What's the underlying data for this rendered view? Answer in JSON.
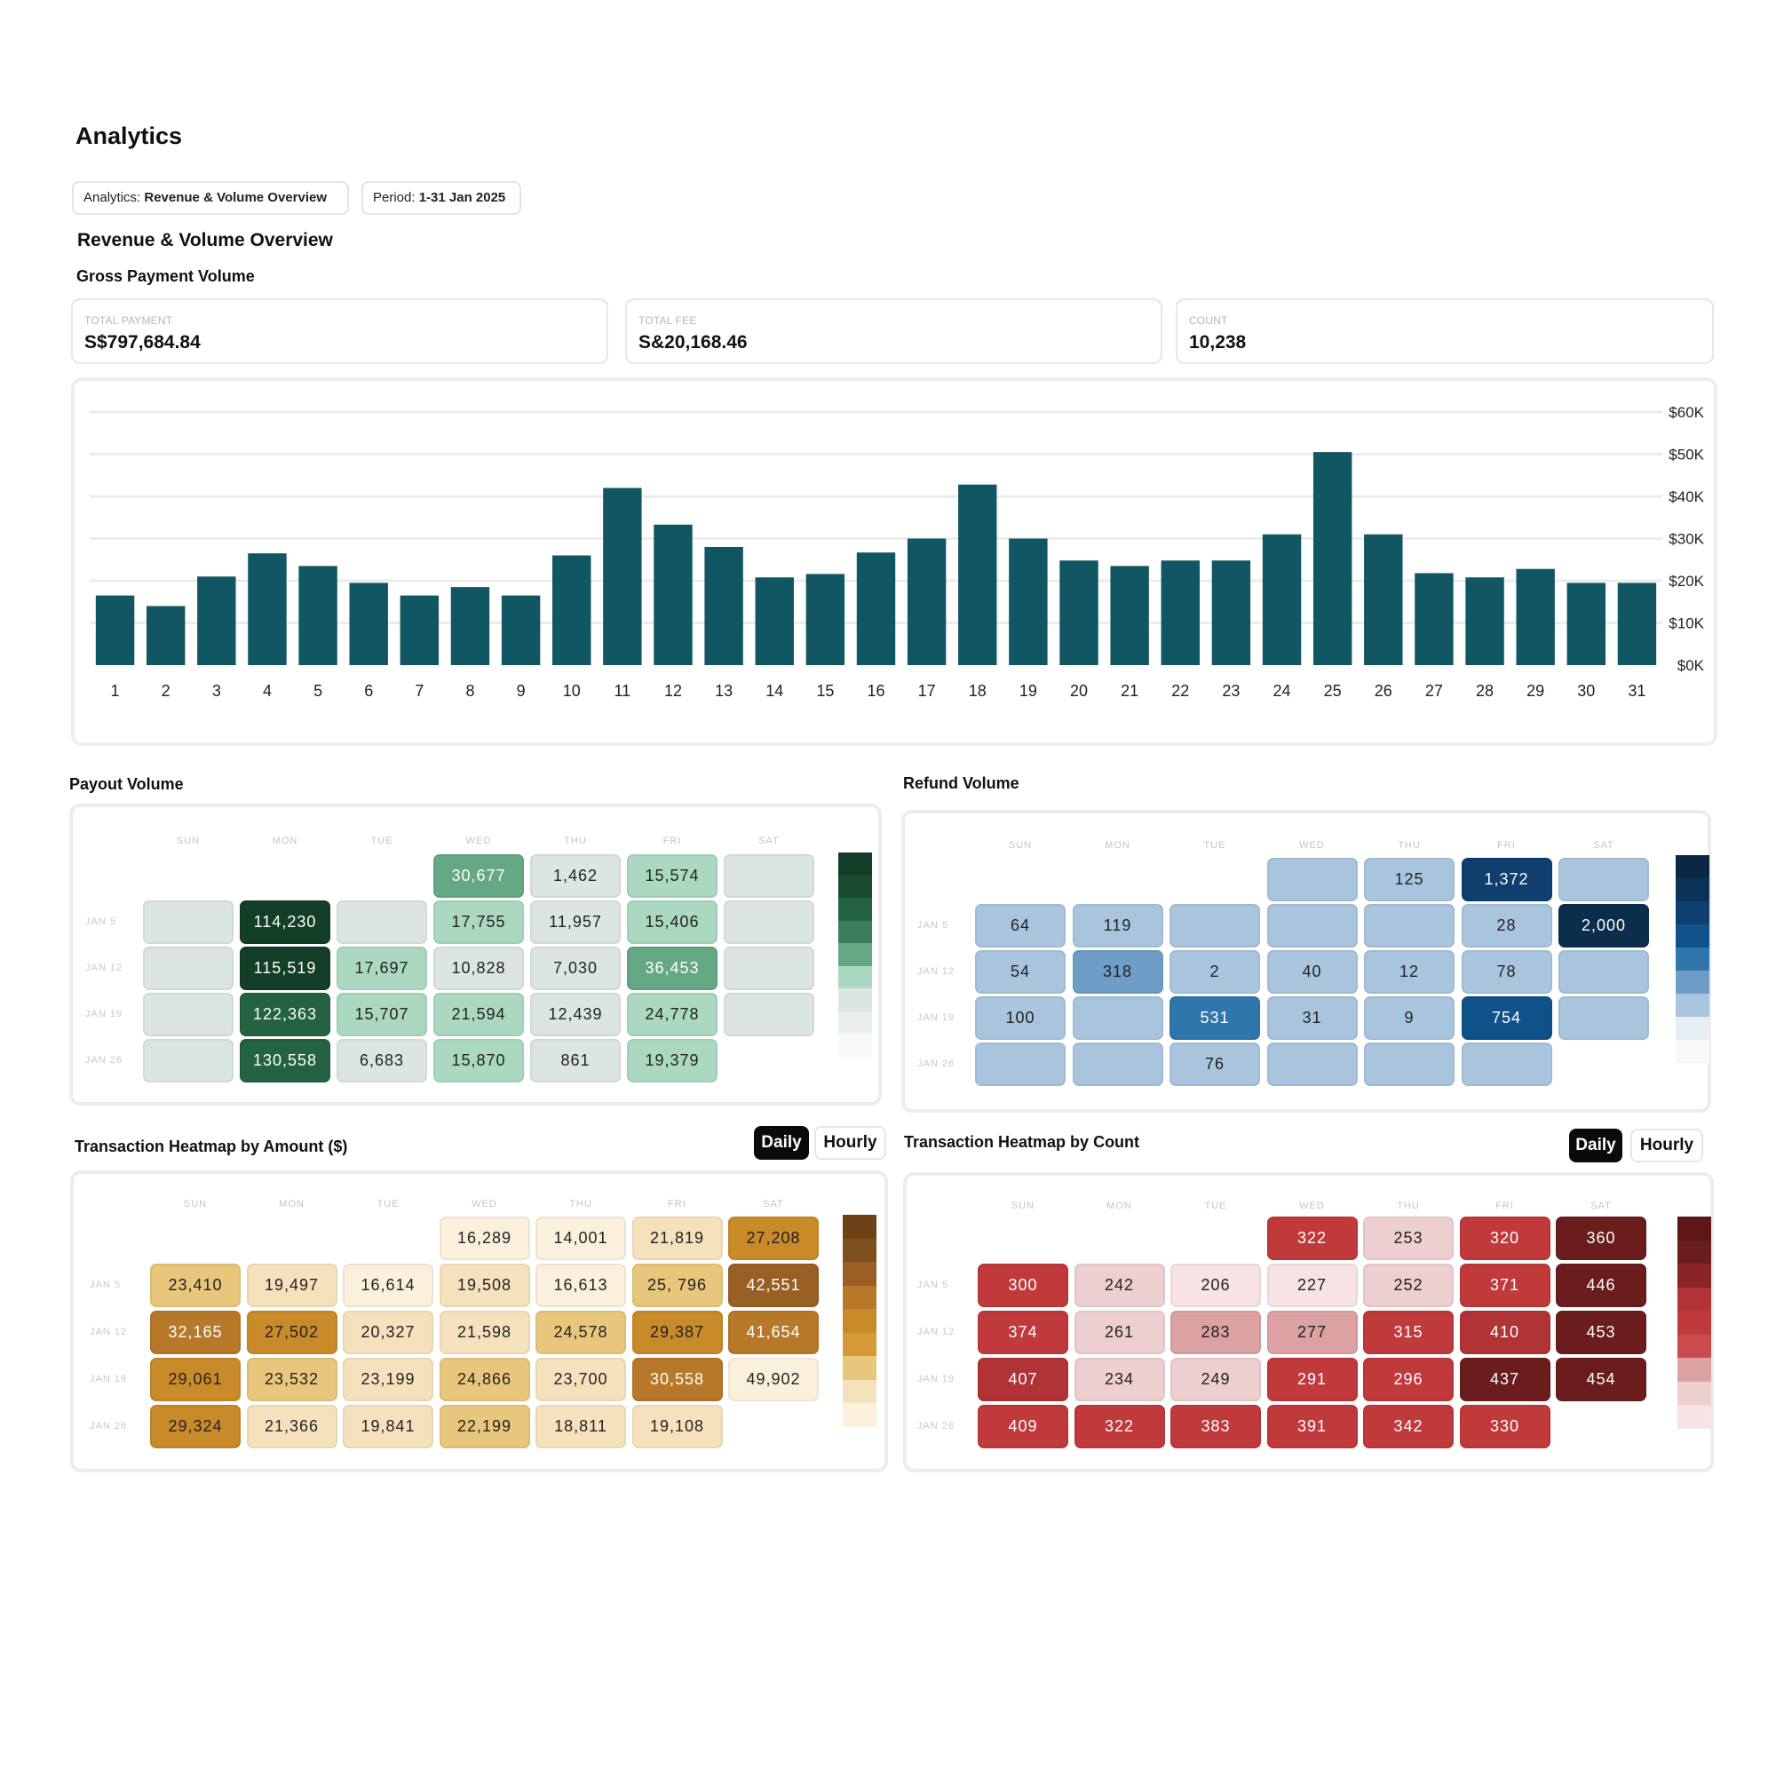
{
  "header": {
    "title": "Analytics",
    "analytics_chip": {
      "label": "Analytics:",
      "value": "Revenue & Volume Overview"
    },
    "period_chip": {
      "label": "Period:",
      "value": "1-31 Jan 2025"
    }
  },
  "overview_title": "Revenue & Volume Overview",
  "gross_payment_volume_title": "Gross Payment Volume",
  "stats": [
    {
      "label": "TOTAL PAYMENT",
      "value": "S$797,684.84"
    },
    {
      "label": "TOTAL FEE",
      "value": "S&20,168.46"
    },
    {
      "label": "COUNT",
      "value": "10,238"
    }
  ],
  "chart_data": {
    "type": "bar",
    "title": "",
    "xlabel": "",
    "ylabel": "",
    "categories": [
      "1",
      "2",
      "3",
      "4",
      "5",
      "6",
      "7",
      "8",
      "9",
      "10",
      "11",
      "12",
      "13",
      "14",
      "15",
      "16",
      "17",
      "18",
      "19",
      "20",
      "21",
      "22",
      "23",
      "24",
      "25",
      "26",
      "27",
      "28",
      "29",
      "30",
      "31"
    ],
    "values": [
      16500,
      14000,
      21000,
      26500,
      23500,
      19500,
      16500,
      18500,
      16500,
      26000,
      42000,
      33300,
      28000,
      20800,
      21600,
      26700,
      30000,
      42800,
      30000,
      24800,
      23500,
      24800,
      24800,
      31000,
      50500,
      31000,
      21800,
      20800,
      22800,
      19500,
      19500
    ],
    "ylim": [
      0,
      60000
    ],
    "yticks": [
      "$0K",
      "$10K",
      "$20K",
      "$30K",
      "$40K",
      "$50K",
      "$60K"
    ],
    "ytick_values": [
      0,
      10000,
      20000,
      30000,
      40000,
      50000,
      60000
    ],
    "y_axis_side": "right",
    "grid": true,
    "color": "#115663"
  },
  "payout": {
    "title": "Payout Volume",
    "days": [
      "SUN",
      "MON",
      "TUE",
      "WED",
      "THU",
      "FRI",
      "SAT"
    ],
    "rows": [
      "JAN 5",
      "JAN 12",
      "JAN 19",
      "JAN 26"
    ],
    "cells": [
      [
        "",
        "",
        "",
        "30,677",
        "1,462",
        "15,574",
        ""
      ],
      [
        "",
        "114,230",
        "",
        "17,755",
        "11,957",
        "15,406",
        ""
      ],
      [
        "",
        "115,519",
        "17,697",
        "10,828",
        "7,030",
        "36,453",
        ""
      ],
      [
        "",
        "122,363",
        "15,707",
        "21,594",
        "12,439",
        "24,778",
        ""
      ],
      [
        "",
        "130,558",
        "6,683",
        "15,870",
        "861",
        "19,379",
        null
      ]
    ],
    "levels": [
      [
        null,
        null,
        null,
        4,
        1,
        2,
        1
      ],
      [
        1,
        7,
        1,
        2,
        1,
        2,
        1
      ],
      [
        1,
        7,
        2,
        1,
        1,
        4,
        1
      ],
      [
        1,
        6,
        2,
        2,
        1,
        2,
        1
      ],
      [
        1,
        6,
        1,
        2,
        1,
        2,
        null
      ]
    ],
    "palette": [
      "#ffffff",
      "#dbe6e0",
      "#aad8c0",
      "#8cc9ab",
      "#64a884",
      "#3f8b63",
      "#236341",
      "#133e27"
    ],
    "legend": [
      "#133e27",
      "#1b4b31",
      "#236341",
      "#3c7d5e",
      "#64a884",
      "#aad8c0",
      "#dbe6e0",
      "#eaefec",
      "#f7f9f8"
    ]
  },
  "refund": {
    "title": "Refund Volume",
    "days": [
      "SUN",
      "MON",
      "TUE",
      "WED",
      "THU",
      "FRI",
      "SAT"
    ],
    "rows": [
      "JAN 5",
      "JAN 12",
      "JAN 19",
      "JAN 26"
    ],
    "cells": [
      [
        null,
        null,
        null,
        "",
        "125",
        "1,372",
        ""
      ],
      [
        "64",
        "119",
        "",
        "",
        "",
        "28",
        "2,000"
      ],
      [
        "54",
        "318",
        "2",
        "40",
        "12",
        "78",
        ""
      ],
      [
        "100",
        "",
        "531",
        "31",
        "9",
        "754",
        ""
      ],
      [
        "",
        "",
        "76",
        "",
        "",
        "",
        null
      ]
    ],
    "levels": [
      [
        null,
        null,
        null,
        1,
        1,
        6,
        1
      ],
      [
        1,
        1,
        1,
        1,
        1,
        1,
        7
      ],
      [
        1,
        3,
        1,
        1,
        1,
        1,
        1
      ],
      [
        1,
        1,
        4,
        1,
        1,
        5,
        1
      ],
      [
        1,
        1,
        1,
        1,
        1,
        1,
        null
      ]
    ],
    "palette": [
      "#ffffff",
      "#a9c5de",
      "#8fb4d4",
      "#6e9ec8",
      "#2f77ab",
      "#0f5289",
      "#0e3f6f",
      "#0b2e4d"
    ],
    "legend": [
      "#0b2746",
      "#0b3358",
      "#0e3f6f",
      "#0f5289",
      "#2f77ab",
      "#6e9ec8",
      "#a9c5de",
      "#e6eef3",
      "#f6f8fa"
    ]
  },
  "amount_heatmap": {
    "title": "Transaction Heatmap by Amount ($)",
    "toggle": [
      "Daily",
      "Hourly"
    ],
    "days": [
      "SUN",
      "MON",
      "TUE",
      "WED",
      "THU",
      "FRI",
      "SAT"
    ],
    "rows": [
      "JAN 5",
      "JAN 12",
      "JAN 19",
      "JAN 26"
    ],
    "cells": [
      [
        null,
        null,
        null,
        "16,289",
        "14,001",
        "21,819",
        "27,208"
      ],
      [
        "23,410",
        "19,497",
        "16,614",
        "19,508",
        "16,613",
        "25, 796",
        "42,551"
      ],
      [
        "32,165",
        "27,502",
        "20,327",
        "21,598",
        "24,578",
        "29,387",
        "41,654"
      ],
      [
        "29,061",
        "23,532",
        "23,199",
        "24,866",
        "23,700",
        "30,558",
        "49,902"
      ],
      [
        "29,324",
        "21,366",
        "19,841",
        "22,199",
        "18,811",
        "19,108",
        null
      ]
    ],
    "levels": [
      [
        null,
        null,
        null,
        1,
        1,
        2,
        4
      ],
      [
        3,
        2,
        1,
        2,
        1,
        3,
        6
      ],
      [
        5,
        4,
        2,
        2,
        3,
        4,
        5
      ],
      [
        4,
        3,
        2,
        3,
        2,
        5,
        1
      ],
      [
        4,
        2,
        2,
        3,
        2,
        2,
        null
      ]
    ],
    "palette": [
      "#ffffff",
      "#fbf0dc",
      "#f5e2bc",
      "#e8c77c",
      "#c98a2a",
      "#b8782a",
      "#9a5f24",
      "#6b4216"
    ],
    "legend": [
      "#6b4216",
      "#7c4f1c",
      "#9a5f24",
      "#b8782a",
      "#c98a2a",
      "#d49a38",
      "#e8c77c",
      "#f5e2bc",
      "#fbf0dc"
    ]
  },
  "count_heatmap": {
    "title": "Transaction Heatmap by Count",
    "toggle": [
      "Daily",
      "Hourly"
    ],
    "days": [
      "SUN",
      "MON",
      "TUE",
      "WED",
      "THU",
      "FRI",
      "SAT"
    ],
    "rows": [
      "JAN 5",
      "JAN 12",
      "JAN 19",
      "JAN 26"
    ],
    "cells": [
      [
        null,
        null,
        null,
        "322",
        "253",
        "320",
        "360"
      ],
      [
        "300",
        "242",
        "206",
        "227",
        "252",
        "371",
        "446"
      ],
      [
        "374",
        "261",
        "283",
        "277",
        "315",
        "410",
        "453"
      ],
      [
        "407",
        "234",
        "249",
        "291",
        "296",
        "437",
        "454"
      ],
      [
        "409",
        "322",
        "383",
        "391",
        "342",
        "330",
        null
      ]
    ],
    "levels": [
      [
        null,
        null,
        null,
        5,
        2,
        5,
        7
      ],
      [
        5,
        2,
        1,
        1,
        2,
        5,
        7
      ],
      [
        5,
        2,
        3,
        3,
        5,
        6,
        7
      ],
      [
        6,
        2,
        2,
        5,
        5,
        7,
        7
      ],
      [
        5,
        5,
        5,
        5,
        5,
        5,
        null
      ]
    ],
    "palette": [
      "#ffffff",
      "#f7e3e3",
      "#eecfcf",
      "#dca1a2",
      "#c94b4d",
      "#c0393b",
      "#b03335",
      "#6b1d1d"
    ],
    "legend": [
      "#5e1717",
      "#6b1d1d",
      "#8a2426",
      "#b03335",
      "#c0393b",
      "#c94b4d",
      "#dca1a2",
      "#eecfcf",
      "#f7e3e3"
    ]
  }
}
